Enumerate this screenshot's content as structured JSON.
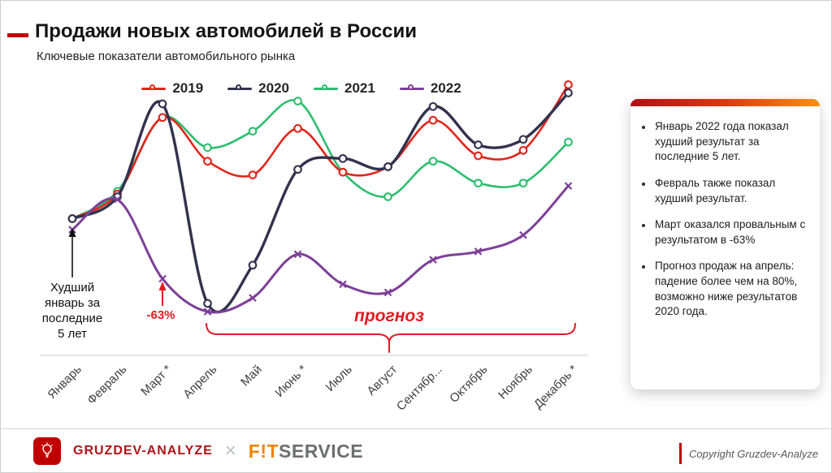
{
  "header": {
    "title": "Продажи новых автомобилей в России",
    "subtitle": "Ключевые показатели автомобильного рынка",
    "accent_color": "#c00000"
  },
  "chart_data": {
    "type": "line",
    "title": "Продажи новых автомобилей в России",
    "x": [
      "Январь",
      "Февраль",
      "Март *",
      "Апрель",
      "Май",
      "Июнь *",
      "Июль",
      "Август",
      "Сентябр...",
      "Октябрь",
      "Ноябрь",
      "Декабрь *"
    ],
    "ylim": [
      0,
      100
    ],
    "grid": false,
    "legend_position": "top",
    "series": [
      {
        "name": "2019",
        "color": "#e1251b",
        "marker": "circle",
        "values": [
          50,
          59,
          87,
          71,
          66,
          83,
          67,
          69,
          86,
          73,
          75,
          99
        ]
      },
      {
        "name": "2020",
        "color": "#32324e",
        "marker": "circle",
        "values": [
          50,
          58,
          92,
          19,
          33,
          68,
          72,
          69,
          91,
          77,
          79,
          96
        ]
      },
      {
        "name": "2021",
        "color": "#2dbd6e",
        "marker": "circle",
        "values": [
          50,
          60,
          87,
          76,
          82,
          93,
          67,
          58,
          71,
          63,
          63,
          78
        ]
      },
      {
        "name": "2022",
        "color": "#7d3f98",
        "marker": "x",
        "values": [
          46,
          57,
          28,
          16,
          21,
          37,
          26,
          23,
          35,
          38,
          44,
          62
        ]
      }
    ],
    "annotations": [
      {
        "id": "worst-january",
        "text": "Худший январь за последние 5 лет",
        "target": "Январь",
        "color": "#101010"
      },
      {
        "id": "march-drop",
        "text": "-63%",
        "target": "Март *",
        "color": "#e11b22"
      },
      {
        "id": "forecast",
        "text": "прогноз",
        "range": [
          "Апрель",
          "Декабрь *"
        ],
        "color": "#e11b22"
      }
    ]
  },
  "insights": {
    "bullets": [
      "Январь 2022 года показал худший результат за последние 5 лет.",
      "Февраль также показал худший результат.",
      "Март оказался провальным с результатом в -63%",
      "Прогноз продаж на апрель: падение более чем на 80%, возможно ниже результатов 2020 года."
    ]
  },
  "footer": {
    "brand": "GRUZDEV-ANALYZE",
    "brand_color": "#c00000",
    "separator": "×",
    "partner": {
      "primary": "F!T",
      "secondary": "SERVICE"
    },
    "copyright": "Copyright Gruzdev-Analyze"
  }
}
